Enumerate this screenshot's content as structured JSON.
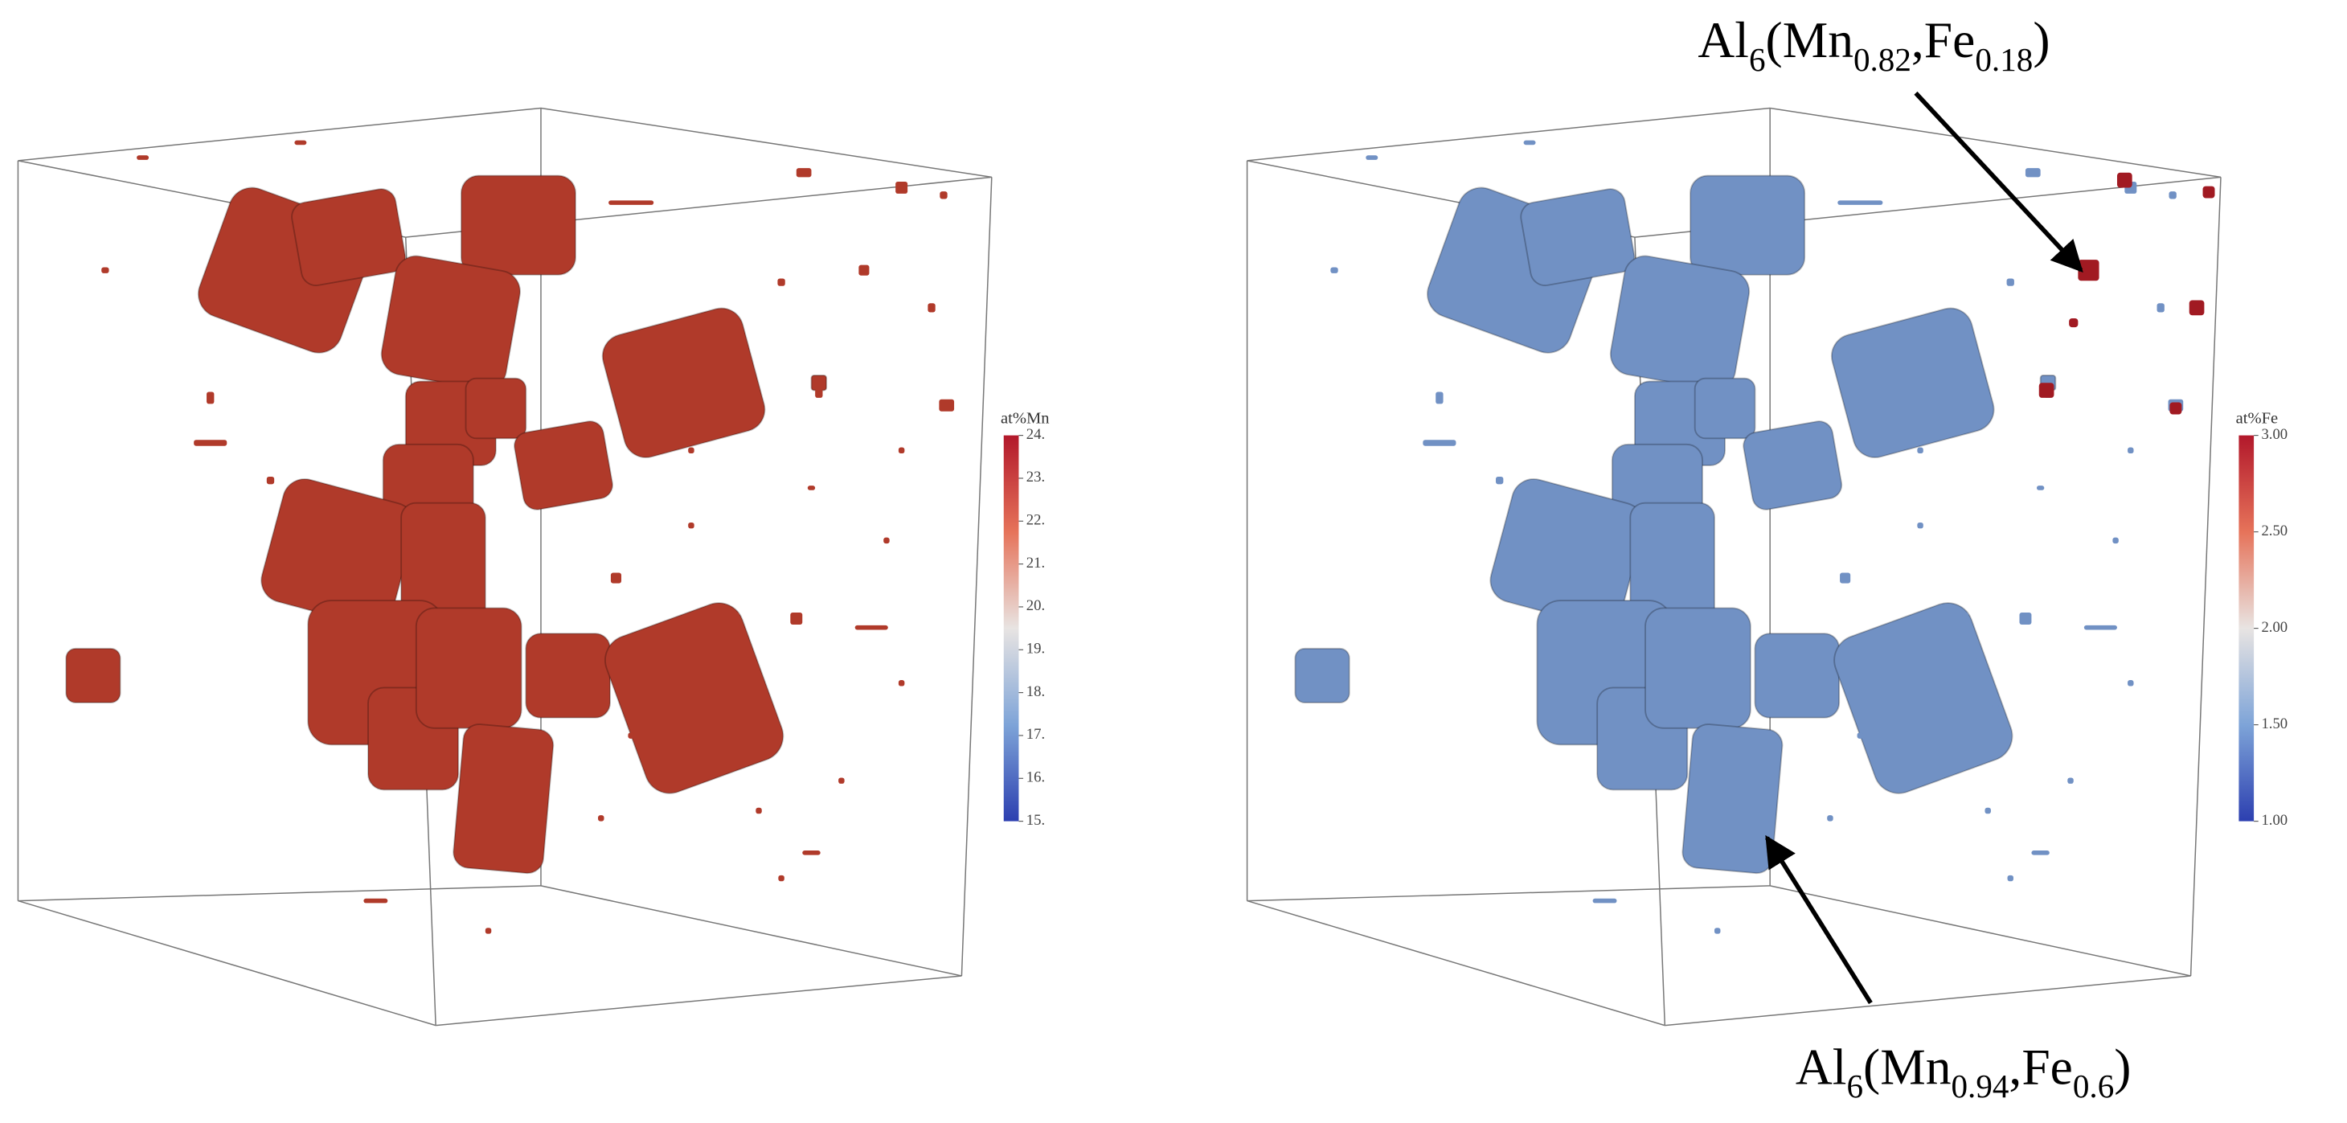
{
  "panels": [
    {
      "colorbar": {
        "label": "at%Mn",
        "ticks": [
          "24.",
          "23.",
          "22.",
          "21.",
          "20.",
          "19.",
          "18.",
          "17.",
          "16.",
          "15."
        ]
      }
    },
    {
      "colorbar": {
        "label": "at%Fe",
        "ticks": [
          "3.00",
          "2.50",
          "2.00",
          "1.50",
          "1.00"
        ]
      }
    }
  ],
  "annotations": [
    {
      "runs": [
        {
          "text": "Al"
        },
        {
          "text": "6",
          "sub": true
        },
        {
          "text": "(Mn"
        },
        {
          "text": "0.82",
          "sub": true
        },
        {
          "text": ",Fe"
        },
        {
          "text": "0.18",
          "sub": true
        },
        {
          "text": ")"
        }
      ]
    },
    {
      "runs": [
        {
          "text": "Al"
        },
        {
          "text": "6",
          "sub": true
        },
        {
          "text": "(Mn"
        },
        {
          "text": "0.94",
          "sub": true
        },
        {
          "text": ",Fe"
        },
        {
          "text": "0.6",
          "sub": true
        },
        {
          "text": ")"
        }
      ]
    }
  ]
}
